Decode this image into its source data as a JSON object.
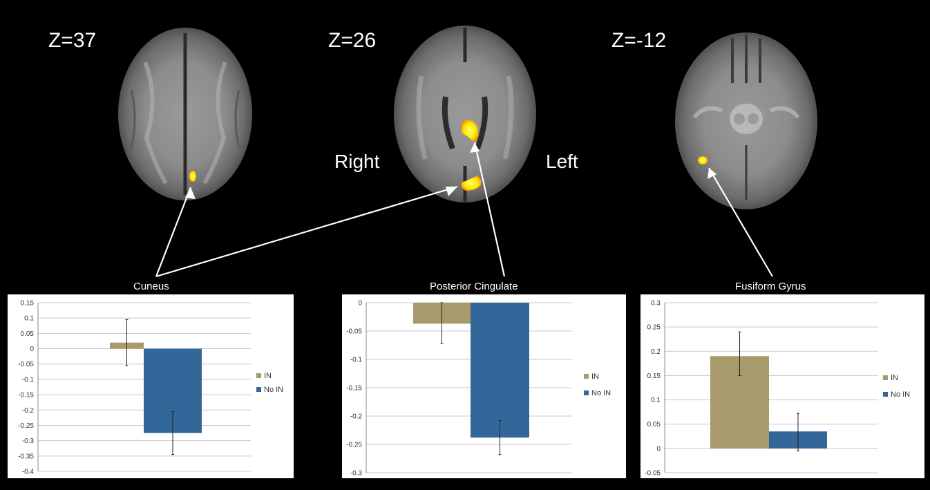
{
  "slices": [
    {
      "label": "Z=37"
    },
    {
      "label": "Z=26"
    },
    {
      "label": "Z=-12"
    }
  ],
  "orientation": {
    "right": "Right",
    "left": "Left"
  },
  "colors": {
    "in": "#a89a6a",
    "no_in": "#336699",
    "activation": "#ffe600",
    "activation_edge": "#ff6a00"
  },
  "chart_data": [
    {
      "type": "bar",
      "title": "Cuneus",
      "categories": [
        "IN",
        "No IN"
      ],
      "values": [
        0.02,
        -0.275
      ],
      "errors": [
        [
          -0.055,
          0.095
        ],
        [
          -0.345,
          -0.205
        ]
      ],
      "ylim": [
        -0.4,
        0.15
      ],
      "ticks": [
        "0.15",
        "0.1",
        "0.05",
        "0",
        "-0.05",
        "-0.1",
        "-0.15",
        "-0.2",
        "-0.25",
        "-0.3",
        "-0.35",
        "-0.4"
      ],
      "legend": [
        "IN",
        "No IN"
      ],
      "grid": true
    },
    {
      "type": "bar",
      "title": "Posterior Cingulate",
      "categories": [
        "IN",
        "No IN"
      ],
      "values": [
        -0.037,
        -0.238
      ],
      "errors": [
        [
          -0.072,
          0.0
        ],
        [
          -0.268,
          -0.208
        ]
      ],
      "ylim": [
        -0.3,
        0
      ],
      "ticks": [
        "0",
        "-0.05",
        "-0.1",
        "-0.15",
        "-0.2",
        "-0.25",
        "-0.3"
      ],
      "legend": [
        "IN",
        "No IN"
      ],
      "grid": true
    },
    {
      "type": "bar",
      "title": "Fusiform Gyrus",
      "categories": [
        "IN",
        "No IN"
      ],
      "values": [
        0.19,
        0.035
      ],
      "errors": [
        [
          0.15,
          0.24
        ],
        [
          -0.005,
          0.072
        ]
      ],
      "ylim": [
        -0.05,
        0.3
      ],
      "ticks": [
        "0.3",
        "0.25",
        "0.2",
        "0.15",
        "0.1",
        "0.05",
        "0",
        "-0.05"
      ],
      "legend": [
        "IN",
        "No IN"
      ],
      "grid": true
    }
  ]
}
